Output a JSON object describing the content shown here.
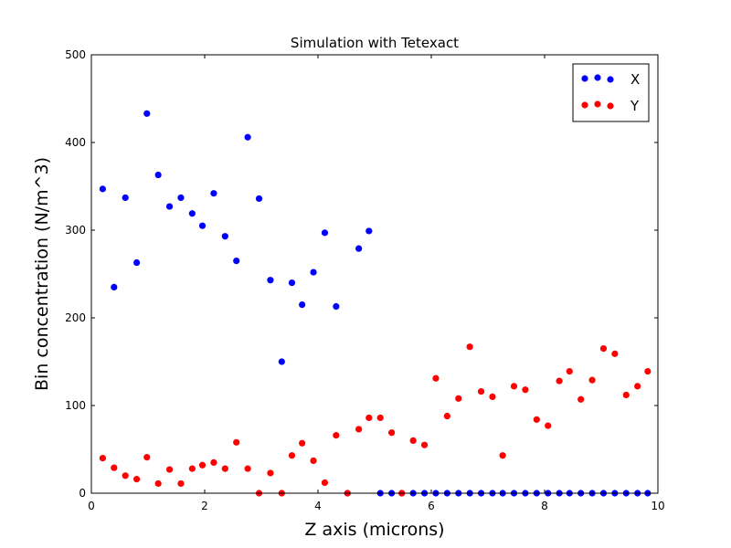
{
  "chart_data": {
    "type": "scatter",
    "title": "Simulation with Tetexact",
    "xlabel": "Z axis (microns)",
    "ylabel": "Bin concentration (N/m^3)",
    "xlim": [
      0,
      10
    ],
    "ylim": [
      0,
      500
    ],
    "xticks": [
      0,
      2,
      4,
      6,
      8,
      10
    ],
    "yticks": [
      0,
      100,
      200,
      300,
      400,
      500
    ],
    "grid": false,
    "legend_position": "top-right",
    "series": [
      {
        "name": "X",
        "color": "#0000ff",
        "x": [
          0.2,
          0.4,
          0.6,
          0.8,
          0.98,
          1.18,
          1.38,
          1.58,
          1.78,
          1.96,
          2.16,
          2.36,
          2.56,
          2.76,
          2.96,
          3.16,
          3.36,
          3.54,
          3.72,
          3.92,
          4.12,
          4.32,
          4.52,
          4.72,
          4.9,
          5.1,
          5.3,
          5.48,
          5.68,
          5.88,
          6.08,
          6.28,
          6.48,
          6.68,
          6.88,
          7.08,
          7.26,
          7.46,
          7.66,
          7.86,
          8.06,
          8.26,
          8.44,
          8.64,
          8.84,
          9.04,
          9.24,
          9.44,
          9.64,
          9.82
        ],
        "y": [
          347,
          235,
          337,
          263,
          433,
          363,
          327,
          337,
          319,
          305,
          342,
          293,
          265,
          406,
          336,
          243,
          150,
          240,
          215,
          252,
          297,
          213,
          0,
          279,
          299,
          0,
          0,
          0,
          0,
          0,
          0,
          0,
          0,
          0,
          0,
          0,
          0,
          0,
          0,
          0,
          0,
          0,
          0,
          0,
          0,
          0,
          0,
          0,
          0,
          0
        ]
      },
      {
        "name": "Y",
        "color": "#ff0000",
        "x": [
          0.2,
          0.4,
          0.6,
          0.8,
          0.98,
          1.18,
          1.38,
          1.58,
          1.78,
          1.96,
          2.16,
          2.36,
          2.56,
          2.76,
          2.96,
          3.16,
          3.36,
          3.54,
          3.72,
          3.92,
          4.12,
          4.32,
          4.52,
          4.72,
          4.9,
          5.1,
          5.3,
          5.48,
          5.68,
          5.88,
          6.08,
          6.28,
          6.48,
          6.68,
          6.88,
          7.08,
          7.26,
          7.46,
          7.66,
          7.86,
          8.06,
          8.26,
          8.44,
          8.64,
          8.84,
          9.04,
          9.24,
          9.44,
          9.64,
          9.82
        ],
        "y": [
          40,
          29,
          20,
          16,
          41,
          11,
          27,
          11,
          28,
          32,
          35,
          28,
          58,
          28,
          0,
          23,
          0,
          43,
          57,
          37,
          12,
          66,
          0,
          73,
          86,
          86,
          69,
          0,
          60,
          55,
          131,
          88,
          108,
          167,
          116,
          110,
          43,
          122,
          118,
          84,
          77,
          128,
          139,
          107,
          129,
          165,
          159,
          112,
          122,
          139
        ]
      }
    ]
  }
}
